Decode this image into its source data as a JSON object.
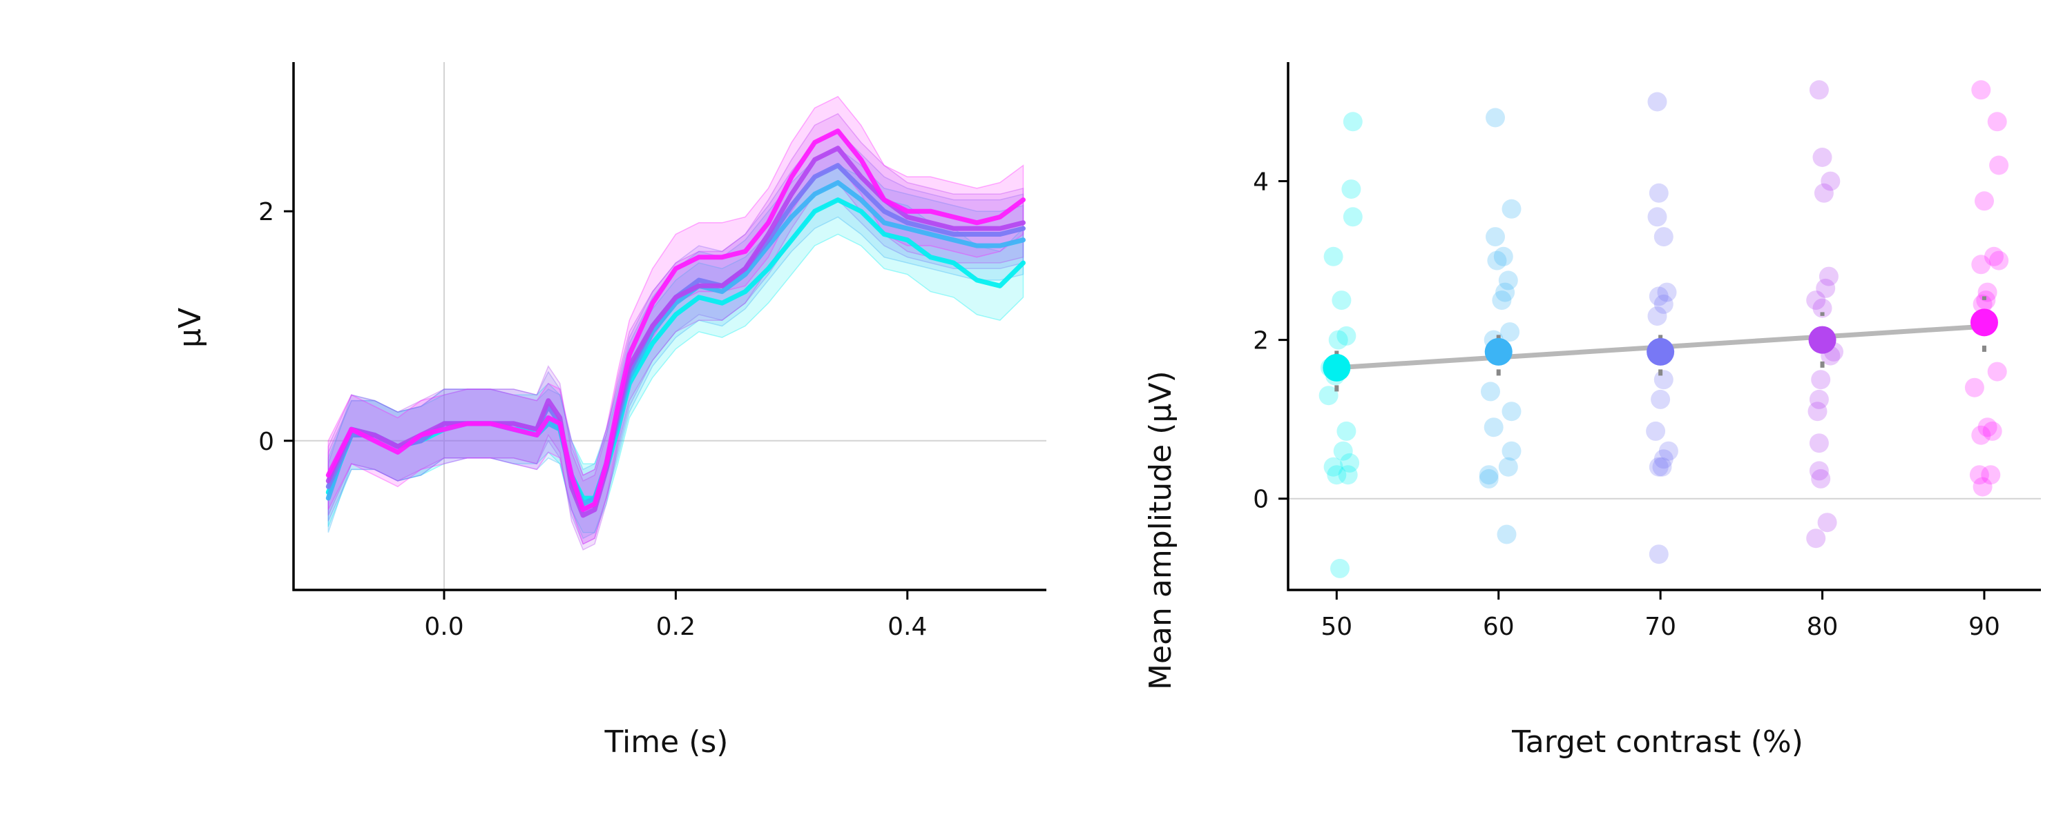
{
  "colors": {
    "c50": "#00f0f0",
    "c60": "#3cb4f5",
    "c70": "#7878f5",
    "c80": "#b446f0",
    "c90": "#ff1aff",
    "axis": "#000000",
    "refline": "#d3d3d3",
    "fit": "#b8b8b8",
    "ci": "#888888"
  },
  "chart_data": [
    {
      "type": "line",
      "xlabel": "Time (s)",
      "ylabel": "μV",
      "xlim": [
        -0.13,
        0.52
      ],
      "ylim": [
        -1.3,
        3.3
      ],
      "xticks": [
        {
          "v": 0.0,
          "label": "0.0"
        },
        {
          "v": 0.2,
          "label": "0.2"
        },
        {
          "v": 0.4,
          "label": "0.4"
        }
      ],
      "yticks": [
        {
          "v": 0,
          "label": "0"
        },
        {
          "v": 2,
          "label": "2"
        }
      ],
      "reference_lines": {
        "x": 0,
        "y": 0
      },
      "band_halfwidth": 0.3,
      "x": [
        -0.1,
        -0.08,
        -0.06,
        -0.04,
        -0.02,
        0.0,
        0.02,
        0.04,
        0.06,
        0.08,
        0.09,
        0.1,
        0.11,
        0.12,
        0.13,
        0.14,
        0.15,
        0.16,
        0.18,
        0.2,
        0.22,
        0.24,
        0.26,
        0.28,
        0.3,
        0.32,
        0.34,
        0.36,
        0.38,
        0.4,
        0.42,
        0.44,
        0.46,
        0.48,
        0.5
      ],
      "series": [
        {
          "level": "50",
          "values": [
            -0.45,
            0.05,
            0.05,
            -0.05,
            0.0,
            0.1,
            0.15,
            0.15,
            0.1,
            0.1,
            0.2,
            0.1,
            -0.3,
            -0.5,
            -0.5,
            -0.25,
            0.1,
            0.5,
            0.85,
            1.1,
            1.25,
            1.2,
            1.3,
            1.5,
            1.75,
            2.0,
            2.1,
            2.0,
            1.8,
            1.75,
            1.6,
            1.55,
            1.4,
            1.35,
            1.55
          ]
        },
        {
          "level": "60",
          "values": [
            -0.5,
            0.1,
            0.05,
            -0.05,
            0.0,
            0.15,
            0.15,
            0.15,
            0.1,
            0.05,
            0.15,
            0.1,
            -0.3,
            -0.55,
            -0.5,
            -0.2,
            0.15,
            0.55,
            0.95,
            1.2,
            1.35,
            1.3,
            1.45,
            1.7,
            1.95,
            2.15,
            2.25,
            2.1,
            1.9,
            1.85,
            1.8,
            1.75,
            1.7,
            1.7,
            1.75
          ]
        },
        {
          "level": "70",
          "values": [
            -0.4,
            0.05,
            0.05,
            -0.05,
            0.0,
            0.15,
            0.15,
            0.15,
            0.15,
            0.1,
            0.3,
            0.15,
            -0.35,
            -0.6,
            -0.55,
            -0.2,
            0.2,
            0.6,
            1.0,
            1.25,
            1.4,
            1.35,
            1.5,
            1.75,
            2.05,
            2.3,
            2.4,
            2.2,
            2.0,
            1.9,
            1.85,
            1.8,
            1.8,
            1.8,
            1.85
          ]
        },
        {
          "level": "80",
          "values": [
            -0.35,
            0.1,
            0.05,
            -0.05,
            0.05,
            0.15,
            0.15,
            0.15,
            0.15,
            0.1,
            0.35,
            0.2,
            -0.4,
            -0.65,
            -0.6,
            -0.25,
            0.25,
            0.65,
            1.0,
            1.25,
            1.35,
            1.35,
            1.5,
            1.8,
            2.15,
            2.45,
            2.55,
            2.3,
            2.1,
            1.95,
            1.9,
            1.85,
            1.85,
            1.85,
            1.9
          ]
        },
        {
          "level": "90",
          "values": [
            -0.3,
            0.1,
            0.0,
            -0.1,
            0.05,
            0.1,
            0.15,
            0.15,
            0.1,
            0.05,
            0.2,
            0.15,
            -0.3,
            -0.6,
            -0.55,
            -0.2,
            0.3,
            0.75,
            1.2,
            1.5,
            1.6,
            1.6,
            1.65,
            1.9,
            2.3,
            2.6,
            2.7,
            2.45,
            2.1,
            2.0,
            2.0,
            1.95,
            1.9,
            1.95,
            2.1
          ]
        }
      ]
    },
    {
      "type": "scatter",
      "xlabel": "Target contrast (%)",
      "ylabel": "Mean amplitude (μV)",
      "xlim": [
        47,
        93.5
      ],
      "ylim": [
        -1.15,
        5.5
      ],
      "xticks": [
        {
          "v": 50,
          "label": "50"
        },
        {
          "v": 60,
          "label": "60"
        },
        {
          "v": 70,
          "label": "70"
        },
        {
          "v": 80,
          "label": "80"
        },
        {
          "v": 90,
          "label": "90"
        }
      ],
      "yticks": [
        {
          "v": 0,
          "label": "0"
        },
        {
          "v": 2,
          "label": "2"
        },
        {
          "v": 4,
          "label": "4"
        }
      ],
      "reference_lines": {
        "y": 0
      },
      "fit_line": {
        "x": [
          50,
          90
        ],
        "y": [
          1.65,
          2.17
        ]
      },
      "groups": [
        {
          "level": "50",
          "mean": 1.65,
          "ci": [
            1.35,
            1.95
          ],
          "points": [
            {
              "x": 51.0,
              "y": 4.75
            },
            {
              "x": 50.9,
              "y": 3.9
            },
            {
              "x": 51.0,
              "y": 3.55
            },
            {
              "x": 49.8,
              "y": 3.05
            },
            {
              "x": 50.3,
              "y": 2.5
            },
            {
              "x": 50.6,
              "y": 2.05
            },
            {
              "x": 50.1,
              "y": 2.0
            },
            {
              "x": 49.6,
              "y": 1.65
            },
            {
              "x": 49.9,
              "y": 1.55
            },
            {
              "x": 49.5,
              "y": 1.3
            },
            {
              "x": 50.6,
              "y": 0.85
            },
            {
              "x": 50.4,
              "y": 0.6
            },
            {
              "x": 50.8,
              "y": 0.45
            },
            {
              "x": 49.8,
              "y": 0.4
            },
            {
              "x": 50.0,
              "y": 0.3
            },
            {
              "x": 50.7,
              "y": 0.3
            },
            {
              "x": 50.2,
              "y": -0.88
            }
          ]
        },
        {
          "level": "60",
          "mean": 1.85,
          "ci": [
            1.55,
            2.15
          ],
          "points": [
            {
              "x": 59.8,
              "y": 4.8
            },
            {
              "x": 60.8,
              "y": 3.65
            },
            {
              "x": 59.8,
              "y": 3.3
            },
            {
              "x": 60.3,
              "y": 3.05
            },
            {
              "x": 59.9,
              "y": 3.0
            },
            {
              "x": 60.6,
              "y": 2.75
            },
            {
              "x": 60.4,
              "y": 2.6
            },
            {
              "x": 60.2,
              "y": 2.5
            },
            {
              "x": 60.7,
              "y": 2.1
            },
            {
              "x": 59.7,
              "y": 2.0
            },
            {
              "x": 59.5,
              "y": 1.35
            },
            {
              "x": 60.8,
              "y": 1.1
            },
            {
              "x": 59.7,
              "y": 0.9
            },
            {
              "x": 60.8,
              "y": 0.6
            },
            {
              "x": 60.6,
              "y": 0.4
            },
            {
              "x": 59.4,
              "y": 0.3
            },
            {
              "x": 59.4,
              "y": 0.25
            },
            {
              "x": 60.5,
              "y": -0.45
            }
          ]
        },
        {
          "level": "70",
          "mean": 1.85,
          "ci": [
            1.55,
            2.15
          ],
          "points": [
            {
              "x": 69.8,
              "y": 5.0
            },
            {
              "x": 69.9,
              "y": 3.85
            },
            {
              "x": 69.8,
              "y": 3.55
            },
            {
              "x": 70.2,
              "y": 3.3
            },
            {
              "x": 70.4,
              "y": 2.6
            },
            {
              "x": 69.9,
              "y": 2.55
            },
            {
              "x": 70.2,
              "y": 2.45
            },
            {
              "x": 69.8,
              "y": 2.3
            },
            {
              "x": 70.1,
              "y": 1.9
            },
            {
              "x": 70.2,
              "y": 1.5
            },
            {
              "x": 70.0,
              "y": 1.25
            },
            {
              "x": 69.7,
              "y": 0.85
            },
            {
              "x": 70.5,
              "y": 0.6
            },
            {
              "x": 70.2,
              "y": 0.5
            },
            {
              "x": 69.9,
              "y": 0.4
            },
            {
              "x": 70.1,
              "y": 0.4
            },
            {
              "x": 69.9,
              "y": -0.7
            }
          ]
        },
        {
          "level": "80",
          "mean": 2.0,
          "ci": [
            1.65,
            2.35
          ],
          "points": [
            {
              "x": 79.8,
              "y": 5.15
            },
            {
              "x": 80.0,
              "y": 4.3
            },
            {
              "x": 80.1,
              "y": 3.85
            },
            {
              "x": 80.5,
              "y": 4.0
            },
            {
              "x": 80.4,
              "y": 2.8
            },
            {
              "x": 80.2,
              "y": 2.65
            },
            {
              "x": 79.6,
              "y": 2.5
            },
            {
              "x": 80.0,
              "y": 2.4
            },
            {
              "x": 80.7,
              "y": 1.85
            },
            {
              "x": 80.5,
              "y": 1.8
            },
            {
              "x": 79.9,
              "y": 1.5
            },
            {
              "x": 79.8,
              "y": 1.25
            },
            {
              "x": 79.7,
              "y": 1.1
            },
            {
              "x": 79.8,
              "y": 0.7
            },
            {
              "x": 79.8,
              "y": 0.35
            },
            {
              "x": 79.9,
              "y": 0.25
            },
            {
              "x": 80.3,
              "y": -0.3
            },
            {
              "x": 79.6,
              "y": -0.5
            }
          ]
        },
        {
          "level": "90",
          "mean": 2.22,
          "ci": [
            1.85,
            2.55
          ],
          "points": [
            {
              "x": 89.8,
              "y": 5.15
            },
            {
              "x": 90.8,
              "y": 4.75
            },
            {
              "x": 90.9,
              "y": 4.2
            },
            {
              "x": 90.0,
              "y": 3.75
            },
            {
              "x": 90.6,
              "y": 3.05
            },
            {
              "x": 90.9,
              "y": 3.0
            },
            {
              "x": 89.8,
              "y": 2.95
            },
            {
              "x": 90.2,
              "y": 2.6
            },
            {
              "x": 90.1,
              "y": 2.5
            },
            {
              "x": 89.9,
              "y": 2.45
            },
            {
              "x": 90.8,
              "y": 1.6
            },
            {
              "x": 89.4,
              "y": 1.4
            },
            {
              "x": 90.2,
              "y": 0.9
            },
            {
              "x": 89.8,
              "y": 0.8
            },
            {
              "x": 90.5,
              "y": 0.85
            },
            {
              "x": 90.4,
              "y": 0.3
            },
            {
              "x": 89.7,
              "y": 0.3
            },
            {
              "x": 89.9,
              "y": 0.15
            }
          ]
        }
      ]
    }
  ]
}
